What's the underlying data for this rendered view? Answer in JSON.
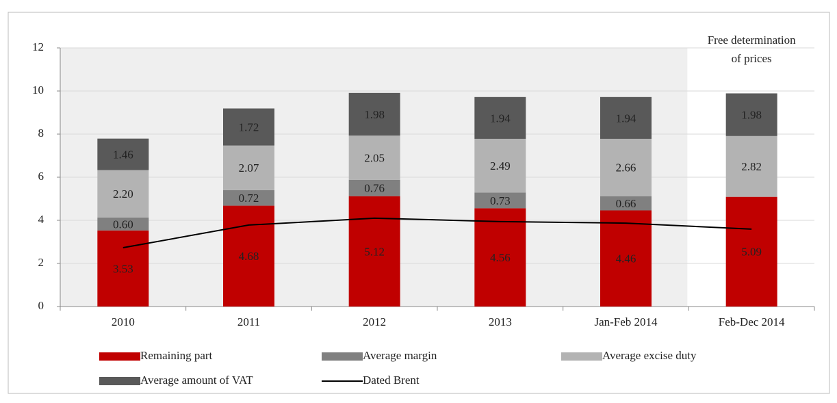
{
  "chart_data": {
    "type": "bar",
    "stacked": true,
    "categories": [
      "2010",
      "2011",
      "2012",
      "2013",
      "Jan-Feb 2014",
      "Feb-Dec 2014"
    ],
    "series": [
      {
        "name": "Remaining part",
        "color": "#c00000",
        "values": [
          3.53,
          4.68,
          5.12,
          4.56,
          4.46,
          5.09
        ],
        "value_labels": [
          "3.53",
          "4.68",
          "5.12",
          "4.56",
          "4.46",
          "5.09"
        ]
      },
      {
        "name": "Average margin",
        "color": "#808080",
        "values": [
          0.6,
          0.72,
          0.76,
          0.73,
          0.66,
          null
        ],
        "value_labels": [
          "0.60",
          "0.72",
          "0.76",
          "0.73",
          "0.66",
          null
        ]
      },
      {
        "name": "Average excise duty",
        "color": "#b3b3b3",
        "values": [
          2.2,
          2.07,
          2.05,
          2.49,
          2.66,
          2.82
        ],
        "value_labels": [
          "2.20",
          "2.07",
          "2.05",
          "2.49",
          "2.66",
          "2.82"
        ]
      },
      {
        "name": "Average amount of VAT",
        "color": "#595959",
        "values": [
          1.46,
          1.72,
          1.98,
          1.94,
          1.94,
          1.98
        ],
        "value_labels": [
          "1.46",
          "1.72",
          "1.98",
          "1.94",
          "1.94",
          "1.98"
        ]
      },
      {
        "name": "Dated Brent",
        "type": "line",
        "color": "#000000",
        "values": [
          2.73,
          3.78,
          4.1,
          3.94,
          3.87,
          3.59
        ]
      }
    ],
    "annotation": [
      "Free determination",
      "of prices"
    ],
    "ylim": [
      0,
      12
    ],
    "yticks": [
      0,
      2,
      4,
      6,
      8,
      10,
      12
    ],
    "grid": true
  }
}
